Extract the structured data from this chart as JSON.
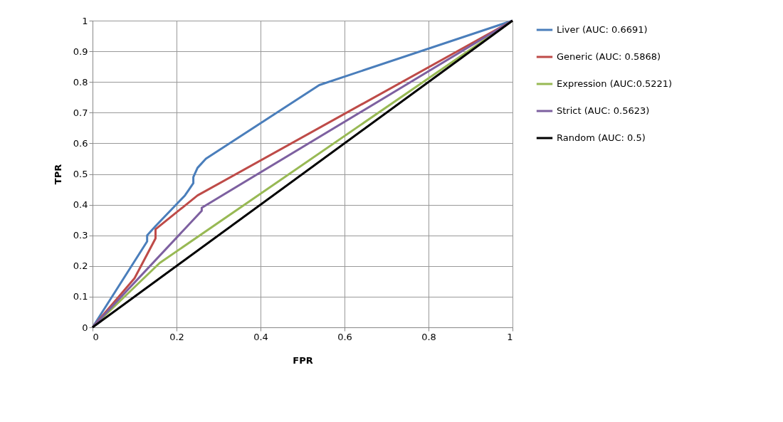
{
  "chart_data": {
    "type": "line",
    "xlabel": "FPR",
    "ylabel": "TPR",
    "xlim": [
      0,
      1
    ],
    "ylim": [
      0,
      1
    ],
    "xticks": [
      0,
      0.2,
      0.4,
      0.6,
      0.8,
      1
    ],
    "yticks": [
      0,
      0.1,
      0.2,
      0.3,
      0.4,
      0.5,
      0.6,
      0.7,
      0.8,
      0.9,
      1
    ],
    "grid": true,
    "legend": "right",
    "marker": "none",
    "series": [
      {
        "name": "Liver (AUC: 0.6691)",
        "color": "#4a7ebb",
        "x": [
          0,
          0.13,
          0.13,
          0.15,
          0.22,
          0.23,
          0.24,
          0.24,
          0.25,
          0.27,
          0.54,
          1
        ],
        "values": [
          0,
          0.28,
          0.3,
          0.33,
          0.43,
          0.45,
          0.47,
          0.49,
          0.52,
          0.55,
          0.79,
          1
        ]
      },
      {
        "name": "Generic (AUC: 0.5868)",
        "color": "#be4b48",
        "x": [
          0,
          0.1,
          0.15,
          0.15,
          0.25,
          1
        ],
        "values": [
          0,
          0.16,
          0.29,
          0.32,
          0.43,
          1
        ]
      },
      {
        "name": "Expression (AUC:0.5221)",
        "color": "#98b954",
        "x": [
          0,
          0.16,
          1
        ],
        "values": [
          0,
          0.21,
          1
        ]
      },
      {
        "name": "Strict (AUC: 0.5623)",
        "color": "#7d60a0",
        "x": [
          0,
          0.26,
          0.26,
          1
        ],
        "values": [
          0,
          0.38,
          0.39,
          1
        ]
      },
      {
        "name": "Random (AUC: 0.5)",
        "color": "#000000",
        "x": [
          0,
          1
        ],
        "values": [
          0,
          1
        ]
      }
    ]
  }
}
